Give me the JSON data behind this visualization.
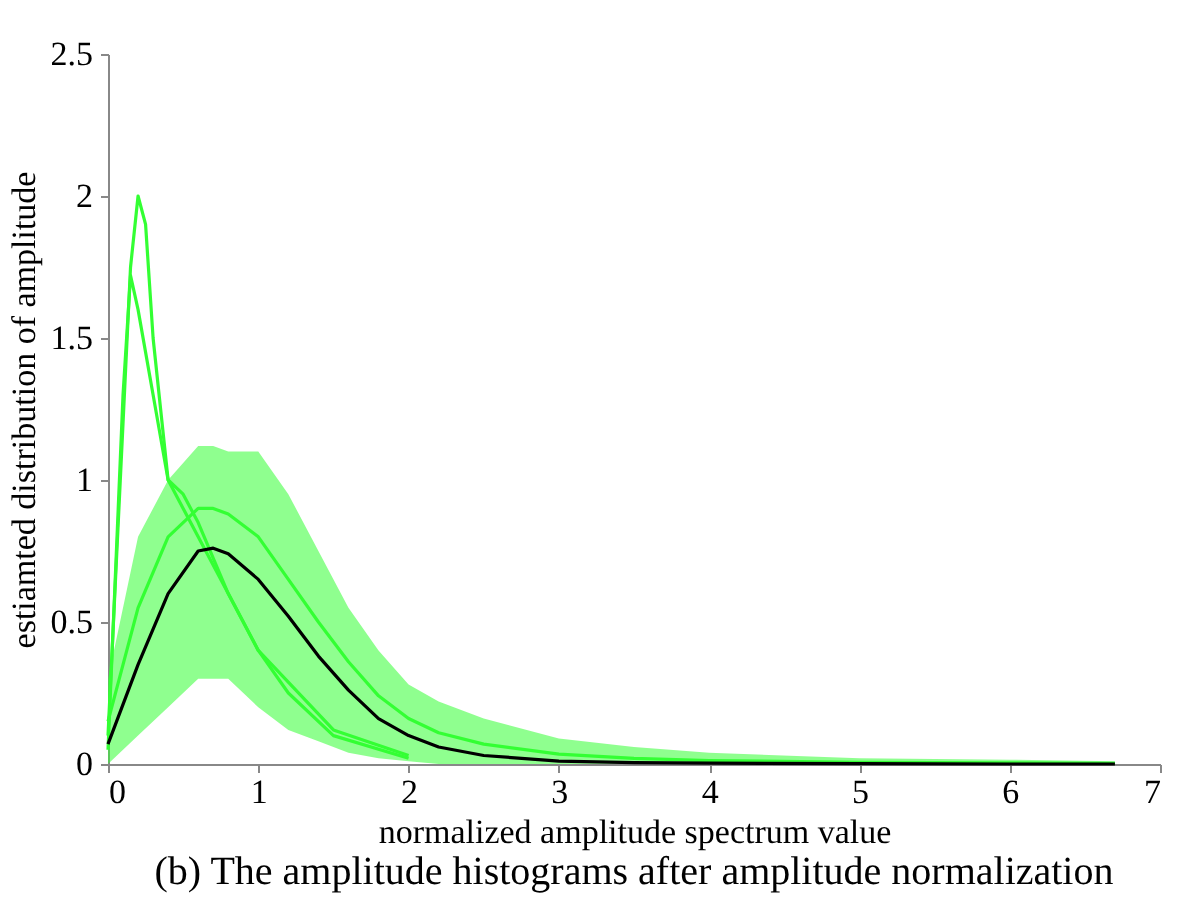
{
  "chart_data": {
    "type": "line",
    "xlabel": "normalized amplitude spectrum value",
    "ylabel": "estiamted distribution of amplitude",
    "annotations": [
      "(b) The amplitude histograms after amplitude normalization"
    ],
    "x": [
      0,
      0.2,
      0.4,
      0.6,
      0.7,
      0.8,
      1.0,
      1.2,
      1.4,
      1.6,
      1.8,
      2.0,
      2.2,
      2.5,
      3.0,
      3.5,
      4,
      5,
      6,
      6.7
    ],
    "xlim": [
      0,
      7
    ],
    "xticks": [
      0,
      1,
      2,
      3,
      4,
      5,
      6,
      7
    ],
    "ylim": [
      0,
      2.5
    ],
    "yticks": [
      0,
      0.5,
      1,
      1.5,
      2,
      2.5
    ],
    "grid": false,
    "marker": "none",
    "line_style": "solid",
    "series": [
      {
        "color": "#33ff33",
        "values": [
          0.15,
          0.55,
          0.8,
          0.9,
          0.9,
          0.88,
          0.8,
          0.65,
          0.5,
          0.36,
          0.24,
          0.16,
          0.11,
          0.07,
          0.035,
          0.02,
          0.012,
          0.006,
          0.004,
          0.002
        ],
        "upper": [
          0.3,
          0.8,
          1.0,
          1.12,
          1.12,
          1.1,
          1.1,
          0.95,
          0.75,
          0.55,
          0.4,
          0.28,
          0.22,
          0.16,
          0.09,
          0.06,
          0.04,
          0.02,
          0.015,
          0.01
        ],
        "lower": [
          0,
          0.1,
          0.2,
          0.3,
          0.3,
          0.3,
          0.2,
          0.12,
          0.08,
          0.04,
          0.02,
          0.01,
          0,
          0,
          0,
          0,
          0,
          0,
          0,
          0
        ]
      },
      {
        "color": "#33ff33",
        "x": [
          0,
          0.1,
          0.15,
          0.2,
          0.25,
          0.3,
          0.4,
          0.5,
          0.6,
          0.8,
          1.0,
          1.2,
          1.5,
          2.0
        ],
        "values": [
          0.1,
          1.2,
          1.75,
          2.0,
          1.9,
          1.5,
          1.0,
          0.9,
          0.8,
          0.6,
          0.4,
          0.25,
          0.1,
          0.02
        ]
      },
      {
        "color": "#33ff33",
        "x": [
          0,
          0.1,
          0.15,
          0.2,
          0.3,
          0.4,
          0.5,
          0.6,
          0.8,
          1.0,
          1.5,
          2.0
        ],
        "values": [
          0.05,
          1.3,
          1.72,
          1.6,
          1.3,
          1.0,
          0.95,
          0.85,
          0.6,
          0.4,
          0.12,
          0.03
        ]
      },
      {
        "color": "#000000",
        "values": [
          0.07,
          0.35,
          0.6,
          0.75,
          0.76,
          0.74,
          0.65,
          0.52,
          0.38,
          0.26,
          0.16,
          0.1,
          0.06,
          0.03,
          0.01,
          0.005,
          0.003,
          0.001,
          0,
          0
        ]
      }
    ]
  }
}
